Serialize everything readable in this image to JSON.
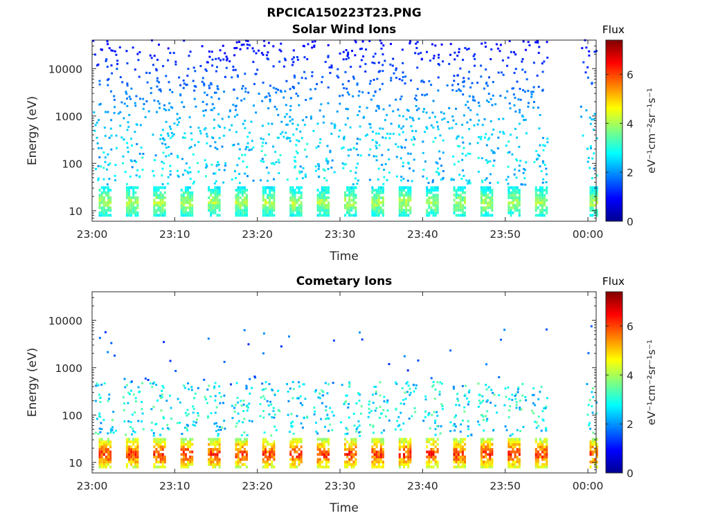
{
  "figure": {
    "title": "RPCICA150223T23.PNG"
  },
  "colorbar": {
    "title": "Flux",
    "label": "eV⁻¹cm⁻²sr⁻¹s⁻¹",
    "ticks": [
      "0",
      "2",
      "4",
      "6"
    ],
    "range": [
      0,
      7.4
    ],
    "colormap": "jet",
    "colors": [
      "#00008f",
      "#0000ff",
      "#00ffff",
      "#ffff00",
      "#ff0000",
      "#800000"
    ]
  },
  "chart_data": [
    {
      "type": "heatmap",
      "title": "Solar Wind Ions",
      "xlabel": "Time",
      "ylabel": "Energy (eV)",
      "x_ticks": [
        "23:00",
        "23:10",
        "23:20",
        "23:30",
        "23:40",
        "23:50",
        "00:00"
      ],
      "y_ticks": [
        "10",
        "100",
        "1000",
        "10000"
      ],
      "y_scale": "log",
      "xlim": [
        "23:00",
        "00:01"
      ],
      "ylim": [
        6,
        40000
      ],
      "data_end": "23:55",
      "data_resume": "23:59",
      "low_energy_bursts_flux_max": 4.5,
      "description_bands": [
        {
          "energy_range_eV": [
            8,
            30
          ],
          "flux": [
            2.5,
            4.5
          ],
          "pattern": "periodic bursts ~every 3.3 min"
        },
        {
          "energy_range_eV": [
            60,
            400
          ],
          "flux": [
            1.8,
            3
          ],
          "pattern": "scattered"
        },
        {
          "energy_range_eV": [
            400,
            40000
          ],
          "flux": [
            0.5,
            2
          ],
          "pattern": "sparse scattered"
        }
      ]
    },
    {
      "type": "heatmap",
      "title": "Cometary Ions",
      "xlabel": "Time",
      "ylabel": "Energy (eV)",
      "x_ticks": [
        "23:00",
        "23:10",
        "23:20",
        "23:30",
        "23:40",
        "23:50",
        "00:00"
      ],
      "y_ticks": [
        "10",
        "100",
        "1000",
        "10000"
      ],
      "y_scale": "log",
      "xlim": [
        "23:00",
        "00:01"
      ],
      "ylim": [
        6,
        40000
      ],
      "data_end": "23:55",
      "data_resume": "23:59",
      "low_energy_bursts_flux_max": 6.8,
      "description_bands": [
        {
          "energy_range_eV": [
            7,
            35
          ],
          "flux": [
            3.5,
            6.8
          ],
          "pattern": "periodic bursts ~every 3.3 min"
        },
        {
          "energy_range_eV": [
            40,
            500
          ],
          "flux": [
            1.8,
            3.5
          ],
          "pattern": "rising streaks"
        },
        {
          "energy_range_eV": [
            500,
            10000
          ],
          "flux": [
            1,
            2
          ],
          "pattern": "rare points"
        }
      ]
    }
  ]
}
